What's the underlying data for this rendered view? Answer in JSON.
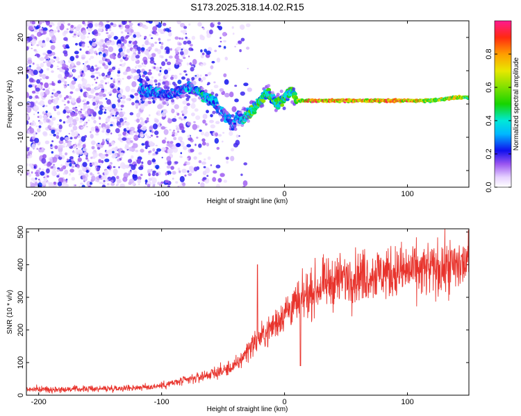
{
  "title": "S173.2025.318.14.02.R15",
  "chart_data": [
    {
      "type": "heatmap",
      "xlabel": "Height of straight line (km)",
      "ylabel": "Frequency (Hz)",
      "xlim": [
        -210,
        150
      ],
      "ylim": [
        -25,
        25
      ],
      "xticks": [
        -200,
        -100,
        0,
        100
      ],
      "yticks": [
        -20,
        -10,
        0,
        10,
        20
      ],
      "colorbar": {
        "label": "Normalized spectral amplitude",
        "range": [
          0,
          1
        ],
        "ticks": [
          "0.0",
          "0.2",
          "0.4",
          "0.6",
          "0.8"
        ],
        "tick_values": [
          0,
          0.2,
          0.4,
          0.6,
          0.8
        ]
      },
      "ridge": {
        "x": [
          -115,
          -108,
          -100,
          -92,
          -85,
          -78,
          -70,
          -64,
          -58,
          -52,
          -46,
          -42,
          -38,
          -34,
          -30,
          -26,
          -22,
          -18,
          -14,
          -10,
          -6,
          -2,
          2,
          6,
          10,
          20,
          40,
          60,
          80,
          100,
          120,
          140,
          150
        ],
        "freq": [
          4,
          4,
          3,
          3,
          4,
          5,
          4,
          2,
          1,
          -2,
          -4,
          -7,
          -3,
          -5,
          -3,
          -2,
          0,
          2,
          3,
          2,
          0,
          1,
          3,
          4,
          1,
          1,
          1,
          1,
          1,
          1,
          1,
          2,
          2
        ],
        "amp": [
          0.35,
          0.4,
          0.35,
          0.38,
          0.35,
          0.4,
          0.45,
          0.5,
          0.45,
          0.35,
          0.38,
          0.35,
          0.4,
          0.45,
          0.55,
          0.6,
          0.62,
          0.6,
          0.55,
          0.6,
          0.62,
          0.65,
          0.55,
          0.6,
          0.75,
          0.95,
          0.95,
          0.95,
          0.92,
          0.95,
          0.7,
          0.85,
          0.6
        ]
      }
    },
    {
      "type": "line",
      "xlabel": "Height of straight line (km)",
      "ylabel": "SNR (10 * v/v)",
      "xlim": [
        -210,
        150
      ],
      "ylim": [
        0,
        510
      ],
      "xticks": [
        -200,
        -100,
        0,
        100
      ],
      "yticks": [
        0,
        100,
        200,
        300,
        400,
        500
      ],
      "color": "#e8332c",
      "series": [
        {
          "name": "SNR",
          "x": [
            -210,
            -180,
            -150,
            -130,
            -110,
            -100,
            -90,
            -80,
            -70,
            -60,
            -50,
            -40,
            -35,
            -30,
            -25,
            -20,
            -15,
            -10,
            -5,
            0,
            10,
            20,
            30,
            40,
            50,
            60,
            70,
            80,
            100,
            120,
            140,
            150
          ],
          "y": [
            18,
            18,
            20,
            22,
            25,
            30,
            38,
            45,
            55,
            65,
            75,
            90,
            110,
            140,
            160,
            175,
            190,
            210,
            230,
            255,
            280,
            310,
            335,
            350,
            360,
            365,
            370,
            375,
            380,
            385,
            395,
            410
          ]
        }
      ],
      "spikes": [
        {
          "x": -22,
          "y": 400
        },
        {
          "x": 13,
          "y": 90
        }
      ]
    }
  ]
}
